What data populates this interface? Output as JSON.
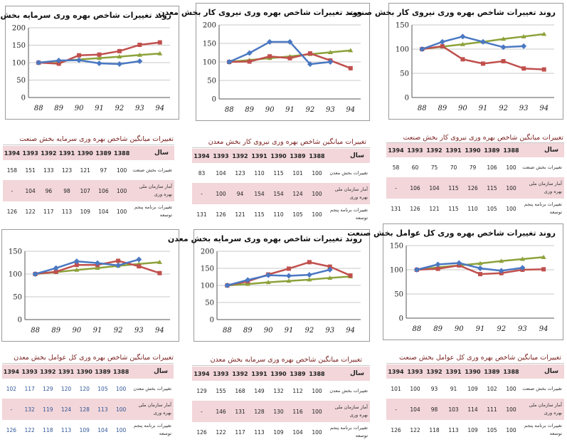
{
  "charts": [
    {
      "title": "روند تغییرات شاخص بهره وری سرمایه بخش صنعت",
      "x": [
        "88",
        "89",
        "90",
        "91",
        "92",
        "93",
        "94"
      ],
      "ylim": [
        0,
        200
      ],
      "yticks": [
        0,
        50,
        100,
        150,
        200
      ],
      "series": [
        {
          "color": "#4a78c2",
          "marker": "diamond",
          "values": [
            100,
            106,
            107,
            98,
            96,
            104,
            null
          ]
        },
        {
          "color": "#c0504d",
          "marker": "square",
          "values": [
            100,
            97,
            121,
            123,
            133,
            151,
            158
          ]
        },
        {
          "color": "#8ca23a",
          "marker": "triangle",
          "values": [
            100,
            104,
            109,
            113,
            117,
            122,
            126
          ]
        }
      ]
    },
    {
      "title": "روند تغییرات شاخص بهره وری نیروی کار بخش معدن",
      "x": [
        "88",
        "89",
        "90",
        "91",
        "92",
        "93",
        "94"
      ],
      "ylim": [
        0,
        200
      ],
      "yticks": [
        0,
        50,
        100,
        150,
        200
      ],
      "series": [
        {
          "color": "#4a78c2",
          "marker": "diamond",
          "values": [
            100,
            124,
            154,
            154,
            94,
            100,
            null
          ]
        },
        {
          "color": "#c0504d",
          "marker": "square",
          "values": [
            100,
            101,
            115,
            110,
            123,
            104,
            83
          ]
        },
        {
          "color": "#8ca23a",
          "marker": "triangle",
          "values": [
            100,
            105,
            110,
            115,
            121,
            126,
            131
          ]
        }
      ]
    },
    {
      "title": "روند تغییرات شاخص بهره وری نیروی کار بخش صنعت",
      "x": [
        "88",
        "89",
        "90",
        "91",
        "92",
        "93",
        "94"
      ],
      "ylim": [
        0,
        150
      ],
      "yticks": [
        0,
        50,
        100,
        150
      ],
      "series": [
        {
          "color": "#4a78c2",
          "marker": "diamond",
          "values": [
            100,
            115,
            126,
            115,
            104,
            106,
            null
          ]
        },
        {
          "color": "#c0504d",
          "marker": "square",
          "values": [
            100,
            106,
            79,
            70,
            75,
            60,
            58
          ]
        },
        {
          "color": "#8ca23a",
          "marker": "triangle",
          "values": [
            100,
            105,
            110,
            115,
            121,
            126,
            131
          ]
        }
      ]
    },
    {
      "title": "",
      "x": [
        "88",
        "89",
        "90",
        "91",
        "92",
        "93",
        "94"
      ],
      "ylim": [
        0,
        150
      ],
      "yticks": [
        0,
        50,
        100,
        150
      ],
      "series": [
        {
          "color": "#4a78c2",
          "marker": "diamond",
          "values": [
            100,
            113,
            128,
            124,
            119,
            132,
            null
          ]
        },
        {
          "color": "#c0504d",
          "marker": "square",
          "values": [
            100,
            105,
            120,
            120,
            129,
            117,
            102
          ]
        },
        {
          "color": "#8ca23a",
          "marker": "triangle",
          "values": [
            100,
            104,
            109,
            113,
            118,
            122,
            126
          ]
        }
      ]
    },
    {
      "title": "روند تغییرات شاخص بهره وری سرمایه بخش معدن",
      "x": [
        "88",
        "89",
        "90",
        "91",
        "92",
        "93",
        "94"
      ],
      "ylim": [
        0,
        200
      ],
      "yticks": [
        0,
        50,
        100,
        150,
        200
      ],
      "series": [
        {
          "color": "#4a78c2",
          "marker": "diamond",
          "values": [
            100,
            116,
            130,
            128,
            131,
            146,
            null
          ]
        },
        {
          "color": "#c0504d",
          "marker": "square",
          "values": [
            100,
            112,
            132,
            149,
            168,
            155,
            129
          ]
        },
        {
          "color": "#8ca23a",
          "marker": "triangle",
          "values": [
            100,
            104,
            109,
            113,
            117,
            122,
            126
          ]
        }
      ]
    },
    {
      "title": "روند تغییرات شاخص بهره وری کل عوامل بخش صنعت",
      "x": [
        "88",
        "89",
        "90",
        "91",
        "92",
        "93",
        "94"
      ],
      "ylim": [
        0,
        150
      ],
      "yticks": [
        0,
        50,
        100,
        150
      ],
      "series": [
        {
          "color": "#4a78c2",
          "marker": "diamond",
          "values": [
            100,
            111,
            114,
            103,
            98,
            104,
            null
          ]
        },
        {
          "color": "#c0504d",
          "marker": "square",
          "values": [
            100,
            102,
            109,
            91,
            93,
            100,
            101
          ]
        },
        {
          "color": "#8ca23a",
          "marker": "triangle",
          "values": [
            100,
            105,
            109,
            113,
            118,
            122,
            126
          ]
        }
      ]
    }
  ],
  "tables": [
    {
      "title": "تغییرات میانگین شاخص بهره وری سرمایه بخش صنعت",
      "label_header": "سال",
      "years": [
        "1388",
        "1389",
        "1390",
        "1391",
        "1392",
        "1393",
        "1394"
      ],
      "num_color": "#222",
      "rows": [
        {
          "label": "تغییرات بخش صنعت",
          "values": [
            "100",
            "97",
            "121",
            "123",
            "133",
            "151",
            "158"
          ]
        },
        {
          "label": "آمار سازمان ملی بهره وری",
          "values": [
            "100",
            "106",
            "107",
            "98",
            "96",
            "104",
            "-"
          ]
        },
        {
          "label": "تغییرات برنامه پنجم توسعه",
          "values": [
            "100",
            "104",
            "109",
            "113",
            "117",
            "122",
            "126"
          ]
        }
      ]
    },
    {
      "title": "تغییرات میانگین شاخص بهره وری نیروی کار بخش معدن",
      "label_header": "سال",
      "years": [
        "1388",
        "1389",
        "1390",
        "1391",
        "1392",
        "1393",
        "1394"
      ],
      "num_color": "#222",
      "rows": [
        {
          "label": "تغییرات بخش معدن",
          "values": [
            "100",
            "101",
            "115",
            "110",
            "123",
            "104",
            "83"
          ]
        },
        {
          "label": "آمار سازمان ملی بهره وری",
          "values": [
            "100",
            "124",
            "154",
            "154",
            "94",
            "100",
            "-"
          ]
        },
        {
          "label": "تغییرات برنامه پنجم توسعه",
          "values": [
            "100",
            "105",
            "110",
            "115",
            "121",
            "126",
            "131"
          ]
        }
      ]
    },
    {
      "title": "تغییرات میانگین شاخص بهره وری نیروی کار بخش صنعت",
      "label_header": "سال",
      "years": [
        "1388",
        "1389",
        "1390",
        "1391",
        "1392",
        "1393",
        "1394"
      ],
      "num_color": "#222",
      "rows": [
        {
          "label": "تغییرات بخش صنعت",
          "values": [
            "100",
            "106",
            "79",
            "70",
            "75",
            "60",
            "58"
          ]
        },
        {
          "label": "آمار سازمان ملی بهره وری",
          "values": [
            "100",
            "115",
            "126",
            "115",
            "104",
            "106",
            "-"
          ]
        },
        {
          "label": "تغییرات برنامه پنجم توسعه",
          "values": [
            "100",
            "105",
            "110",
            "115",
            "121",
            "126",
            "131"
          ]
        }
      ]
    },
    {
      "title": "تغییرات میانگین شاخص بهره وری کل عوامل بخش معدن",
      "label_header": "سال",
      "years": [
        "1388",
        "1389",
        "1390",
        "1391",
        "1392",
        "1393",
        "1394"
      ],
      "num_color": "#2f5597",
      "rows": [
        {
          "label": "تغییرات بخش معدن",
          "values": [
            "100",
            "105",
            "120",
            "120",
            "129",
            "117",
            "102"
          ]
        },
        {
          "label": "آمار سازمان ملی بهره وری",
          "values": [
            "100",
            "113",
            "128",
            "124",
            "119",
            "132",
            "-"
          ]
        },
        {
          "label": "تغییرات برنامه پنجم توسعه",
          "values": [
            "100",
            "104",
            "109",
            "113",
            "118",
            "122",
            "126"
          ]
        }
      ]
    },
    {
      "title": "تغییرات میانگین شاخص بهره وری سرمایه بخش معدن",
      "label_header": "سال",
      "years": [
        "1388",
        "1389",
        "1390",
        "1391",
        "1392",
        "1393",
        "1394"
      ],
      "num_color": "#222",
      "rows": [
        {
          "label": "تغییرات بخش معدن",
          "values": [
            "100",
            "112",
            "132",
            "149",
            "168",
            "155",
            "129"
          ]
        },
        {
          "label": "آمار سازمان ملی بهره وری",
          "values": [
            "100",
            "116",
            "130",
            "128",
            "131",
            "146",
            "-"
          ]
        },
        {
          "label": "تغییرات برنامه پنجم توسعه",
          "values": [
            "100",
            "104",
            "109",
            "113",
            "117",
            "122",
            "126"
          ]
        }
      ]
    },
    {
      "title": "تغییرات میانگین شاخص بهره وری کل عوامل بخش صنعت",
      "label_header": "سال",
      "years": [
        "1388",
        "1389",
        "1390",
        "1391",
        "1392",
        "1393",
        "1394"
      ],
      "num_color": "#222",
      "rows": [
        {
          "label": "تغییرات بخش صنعت",
          "values": [
            "100",
            "102",
            "109",
            "91",
            "93",
            "100",
            "101"
          ]
        },
        {
          "label": "آمار سازمان ملی بهره وری",
          "values": [
            "100",
            "111",
            "114",
            "103",
            "98",
            "104",
            "-"
          ]
        },
        {
          "label": "تغییرات برنامه پنجم توسعه",
          "values": [
            "100",
            "105",
            "109",
            "113",
            "118",
            "122",
            "126"
          ]
        }
      ]
    }
  ],
  "chart_data": [
    {
      "type": "line",
      "x": [
        "88",
        "89",
        "90",
        "91",
        "92",
        "93",
        "94"
      ],
      "ylim": [
        0,
        200
      ],
      "series": [
        {
          "values": [
            100,
            106,
            107,
            98,
            96,
            104,
            null
          ]
        },
        {
          "values": [
            100,
            97,
            121,
            123,
            133,
            151,
            158
          ]
        },
        {
          "values": [
            100,
            104,
            109,
            113,
            117,
            122,
            126
          ]
        }
      ]
    },
    {
      "type": "line",
      "x": [
        "88",
        "89",
        "90",
        "91",
        "92",
        "93",
        "94"
      ],
      "ylim": [
        0,
        200
      ],
      "series": [
        {
          "values": [
            100,
            124,
            154,
            154,
            94,
            100,
            null
          ]
        },
        {
          "values": [
            100,
            101,
            115,
            110,
            123,
            104,
            83
          ]
        },
        {
          "values": [
            100,
            105,
            110,
            115,
            121,
            126,
            131
          ]
        }
      ]
    },
    {
      "type": "line",
      "x": [
        "88",
        "89",
        "90",
        "91",
        "92",
        "93",
        "94"
      ],
      "ylim": [
        0,
        150
      ],
      "series": [
        {
          "values": [
            100,
            115,
            126,
            115,
            104,
            106,
            null
          ]
        },
        {
          "values": [
            100,
            106,
            79,
            70,
            75,
            60,
            58
          ]
        },
        {
          "values": [
            100,
            105,
            110,
            115,
            121,
            126,
            131
          ]
        }
      ]
    },
    {
      "type": "line",
      "x": [
        "88",
        "89",
        "90",
        "91",
        "92",
        "93",
        "94"
      ],
      "ylim": [
        0,
        150
      ],
      "series": [
        {
          "values": [
            100,
            113,
            128,
            124,
            119,
            132,
            null
          ]
        },
        {
          "values": [
            100,
            105,
            120,
            120,
            129,
            117,
            102
          ]
        },
        {
          "values": [
            100,
            104,
            109,
            113,
            118,
            122,
            126
          ]
        }
      ]
    },
    {
      "type": "line",
      "x": [
        "88",
        "89",
        "90",
        "91",
        "92",
        "93",
        "94"
      ],
      "ylim": [
        0,
        200
      ],
      "series": [
        {
          "values": [
            100,
            116,
            130,
            128,
            131,
            146,
            null
          ]
        },
        {
          "values": [
            100,
            112,
            132,
            149,
            168,
            155,
            129
          ]
        },
        {
          "values": [
            100,
            104,
            109,
            113,
            117,
            122,
            126
          ]
        }
      ]
    },
    {
      "type": "line",
      "x": [
        "88",
        "89",
        "90",
        "91",
        "92",
        "93",
        "94"
      ],
      "ylim": [
        0,
        150
      ],
      "series": [
        {
          "values": [
            100,
            111,
            114,
            103,
            98,
            104,
            null
          ]
        },
        {
          "values": [
            100,
            102,
            109,
            91,
            93,
            100,
            101
          ]
        },
        {
          "values": [
            100,
            105,
            109,
            113,
            118,
            122,
            126
          ]
        }
      ]
    }
  ]
}
